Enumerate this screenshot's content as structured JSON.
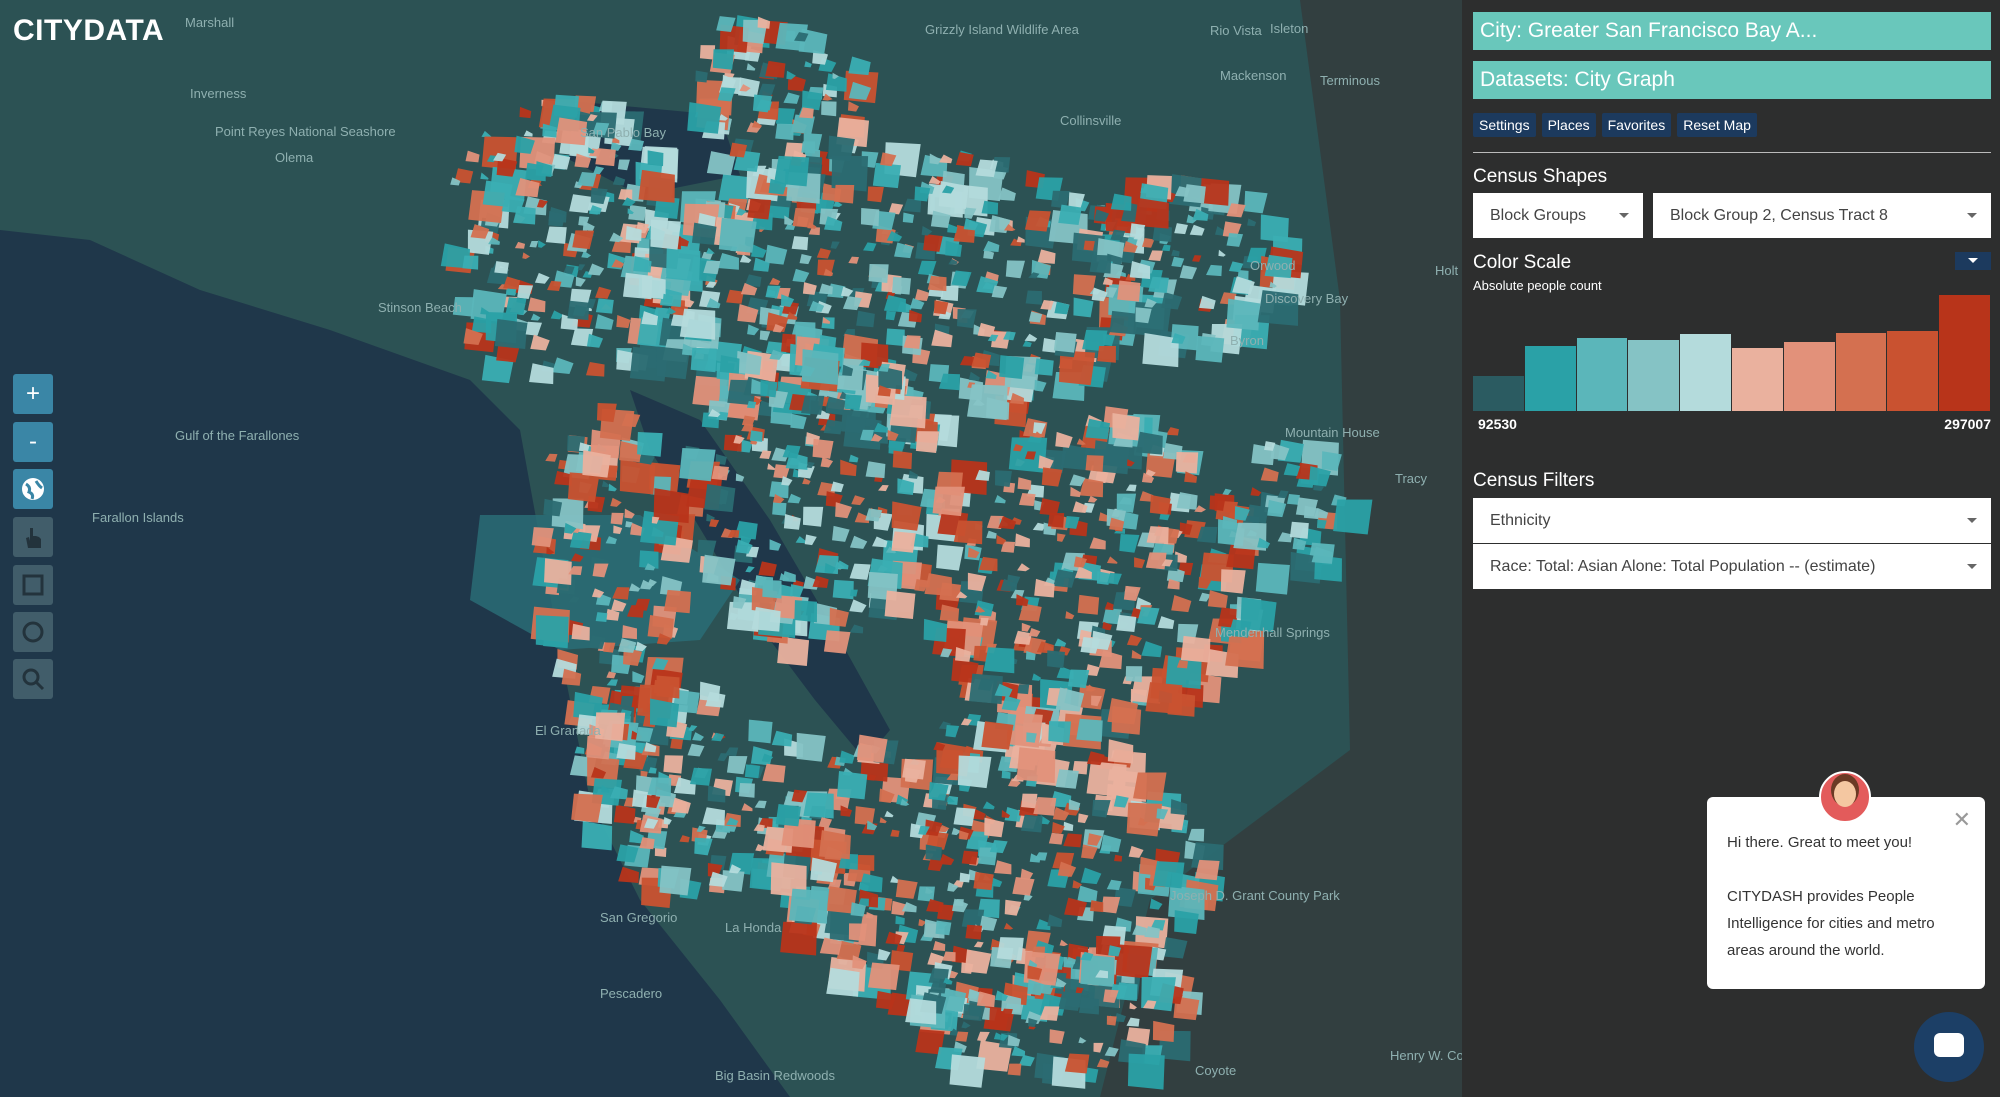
{
  "header": {
    "logo": "CITYDATA"
  },
  "sidebar": {
    "city": "City: Greater San Francisco Bay A...",
    "datasets": "Datasets: City Graph",
    "buttons": [
      "Settings",
      "Places",
      "Favorites",
      "Reset Map"
    ],
    "census_shapes": {
      "title": "Census Shapes",
      "shape_type": "Block Groups",
      "selection": "Block Group 2, Census Tract 8"
    },
    "color_scale": {
      "title": "Color Scale",
      "subtitle": "Absolute people count",
      "min": 92530,
      "max": 297007
    },
    "census_filters": {
      "title": "Census Filters",
      "category": "Ethnicity",
      "variable": "Race: Total: Asian Alone: Total Population -- (estimate)"
    }
  },
  "chat": {
    "greeting": "Hi there. Great to meet you!",
    "message": "CITYDASH provides People Intelligence for cities and metro areas around the world."
  },
  "toolbar": [
    "+",
    "-"
  ],
  "map_labels": [
    "Marshall",
    "Inverness",
    "Point Reyes National Seashore",
    "Olema",
    "Stinson Beach",
    "Gulf of the Farallones",
    "Farallon Islands",
    "San Pablo Bay",
    "Grizzly Island Wildlife Area",
    "Rio Vista",
    "Isleton",
    "Mackenson",
    "Terminous",
    "Collinsville",
    "Orwood",
    "Discovery Bay",
    "Byron",
    "Holt",
    "Mountain House",
    "Tracy",
    "Mendenhall Springs",
    "El Granada",
    "San Gregorio",
    "La Honda",
    "Pescadero",
    "Big Basin Redwoods",
    "Henry W. Coe State Park",
    "Coyote",
    "Joseph D. Grant County Park"
  ]
}
